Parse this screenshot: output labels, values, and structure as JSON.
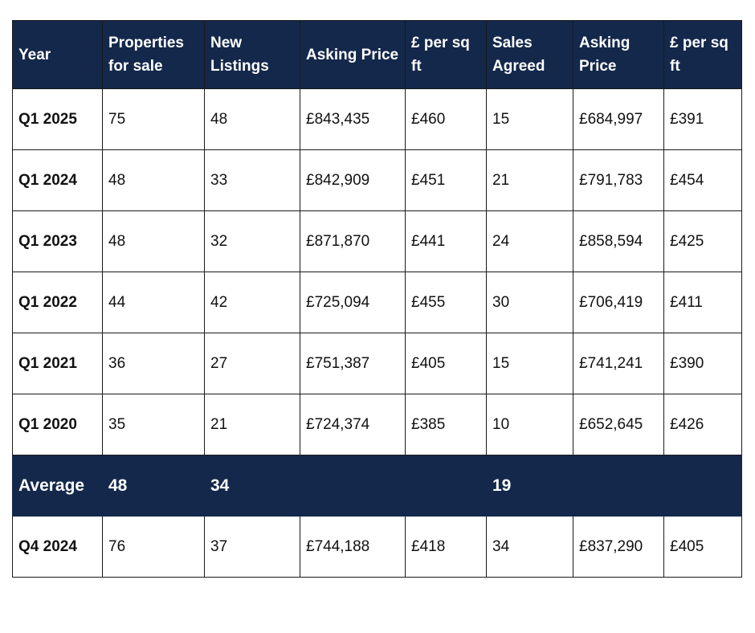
{
  "table": {
    "headers": [
      "Year",
      "Properties for sale",
      "New Listings",
      "Asking Price",
      "£ per sq ft",
      "Sales Agreed",
      "Asking Price",
      "£ per sq ft"
    ],
    "rows": [
      [
        "Q1 2025",
        "75",
        "48",
        "£843,435",
        "£460",
        "15",
        "£684,997",
        "£391"
      ],
      [
        "Q1 2024",
        "48",
        "33",
        "£842,909",
        "£451",
        "21",
        "£791,783",
        "£454"
      ],
      [
        "Q1 2023",
        "48",
        "32",
        "£871,870",
        "£441",
        "24",
        "£858,594",
        "£425"
      ],
      [
        "Q1 2022",
        "44",
        "42",
        "£725,094",
        "£455",
        "30",
        "£706,419",
        "£411"
      ],
      [
        "Q1 2021",
        "36",
        "27",
        "£751,387",
        "£405",
        "15",
        "£741,241",
        "£390"
      ],
      [
        "Q1 2020",
        "35",
        "21",
        "£724,374",
        "£385",
        "10",
        "£652,645",
        "£426"
      ]
    ],
    "average": [
      "Average",
      "48",
      "34",
      "",
      "",
      "19",
      "",
      ""
    ],
    "comparison": [
      "Q4 2024",
      "76",
      "37",
      "£744,188",
      "£418",
      "34",
      "£837,290",
      "£405"
    ]
  },
  "colors": {
    "header_bg": "#14284b",
    "header_text": "#ffffff"
  }
}
